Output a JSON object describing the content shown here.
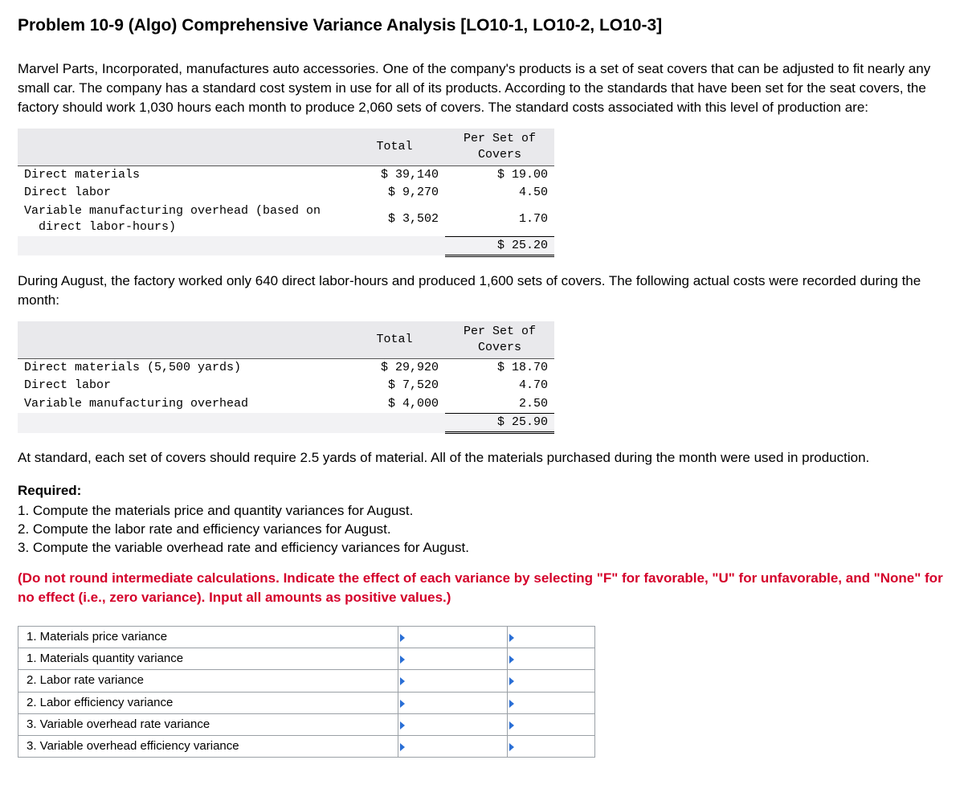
{
  "title": "Problem 10-9 (Algo) Comprehensive Variance Analysis [LO10-1, LO10-2, LO10-3]",
  "para1": "Marvel Parts, Incorporated, manufactures auto accessories. One of the company's products is a set of seat covers that can be adjusted to fit nearly any small car. The company has a standard cost system in use for all of its products. According to the standards that have been set for the seat covers, the factory should work 1,030 hours each month to produce 2,060 sets of covers. The standard costs associated with this level of production are:",
  "table1": {
    "headers": {
      "total": "Total",
      "per": "Per Set of\nCovers"
    },
    "rows": [
      {
        "label": "Direct materials",
        "total": "$ 39,140",
        "per": "$ 19.00"
      },
      {
        "label": "Direct labor",
        "total": "$ 9,270",
        "per": "4.50"
      },
      {
        "label": "Variable manufacturing overhead (based on\n  direct labor-hours)",
        "total": "$ 3,502",
        "per": "1.70"
      }
    ],
    "sum_per": "$ 25.20"
  },
  "para2": "During August, the factory worked only 640 direct labor-hours and produced 1,600 sets of covers. The following actual costs were recorded during the month:",
  "table2": {
    "headers": {
      "total": "Total",
      "per": "Per Set of\nCovers"
    },
    "rows": [
      {
        "label": "Direct materials (5,500 yards)",
        "total": "$ 29,920",
        "per": "$ 18.70"
      },
      {
        "label": "Direct labor",
        "total": "$ 7,520",
        "per": "4.70"
      },
      {
        "label": "Variable manufacturing overhead",
        "total": "$ 4,000",
        "per": "2.50"
      }
    ],
    "sum_per": "$ 25.90"
  },
  "para3": "At standard, each set of covers should require 2.5 yards of material. All of the materials purchased during the month were used in production.",
  "required_label": "Required:",
  "requirements": [
    "1. Compute the materials price and quantity variances for August.",
    "2. Compute the labor rate and efficiency variances for August.",
    "3. Compute the variable overhead rate and efficiency variances for August."
  ],
  "red_instruction": "(Do not round intermediate calculations. Indicate the effect of each variance by selecting \"F\" for favorable, \"U\" for unfavorable, and \"None\" for no effect (i.e., zero variance). Input all amounts as positive values.)",
  "answer_rows": [
    "1. Materials price variance",
    "1. Materials quantity variance",
    "2. Labor rate variance",
    "2. Labor efficiency variance",
    "3. Variable overhead rate variance",
    "3. Variable overhead efficiency variance"
  ],
  "colors": {
    "red": "#d4002a",
    "marker": "#2a6fd6",
    "border": "#9aa0a6",
    "shade": "#e9e9ec"
  }
}
